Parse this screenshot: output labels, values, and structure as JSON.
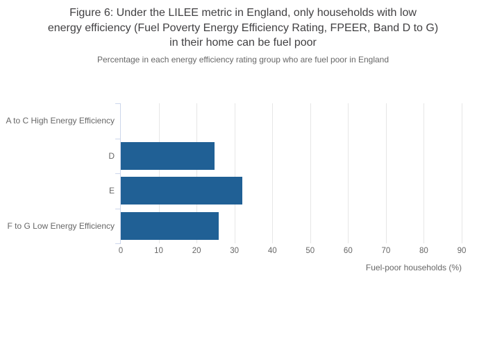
{
  "figure": {
    "title_lines": [
      "Figure 6: Under the LILEE metric in England, only households with low",
      "energy efficiency (Fuel Poverty Energy Efficiency Rating, FPEER, Band D to G)",
      "in their home can be fuel poor"
    ],
    "subtitle": "Percentage in each energy efficiency rating group who are fuel poor in England"
  },
  "chart_data": {
    "type": "bar",
    "orientation": "horizontal",
    "title": "Figure 6: Under the LILEE metric in England, only households with low energy efficiency (Fuel Poverty Energy Efficiency Rating, FPEER, Band D to G) in their home can be fuel poor",
    "subtitle": "Percentage in each energy efficiency rating group who are fuel poor in England",
    "categories": [
      "A to C High Energy Efficiency",
      "D",
      "E",
      "F to G Low Energy Efficiency"
    ],
    "values": [
      0,
      24.8,
      32,
      25.9
    ],
    "xlabel": "Fuel-poor households (%)",
    "ylabel": "",
    "xlim": [
      0,
      90
    ],
    "xticks": [
      0,
      10,
      20,
      30,
      40,
      50,
      60,
      70,
      80,
      90
    ],
    "grid": true,
    "legend": "none",
    "bar_color": "#206095",
    "gridline_color": "#e6e6e6",
    "axis_line_color": "#ccd6eb",
    "label_color": "#666666",
    "title_color": "#414042"
  }
}
